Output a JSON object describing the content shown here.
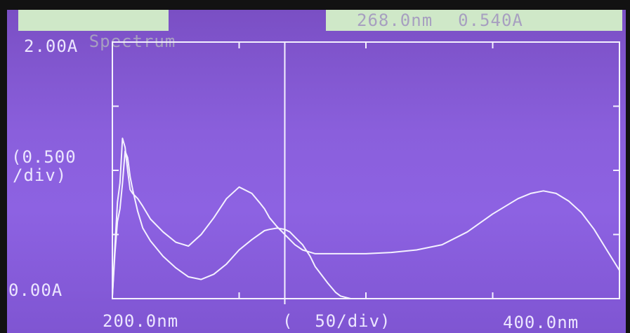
{
  "header": {
    "mode": "Spectrum",
    "cursor_wavelength": "268.0nm",
    "cursor_absorbance": "0.540A"
  },
  "axes": {
    "y_max_label": "2.00A",
    "y_min_label": "0.00A",
    "y_div_line1": "(0.500",
    "y_div_line2": "/div)",
    "x_min_label": "200.0nm",
    "x_div_label": "(  50/div)",
    "x_max_label": "400.0nm"
  },
  "colors": {
    "screen_background": "#8a5fdc",
    "trace": "#f4f1ff",
    "header_box": "#cfe8c8"
  },
  "chart_data": {
    "type": "line",
    "xlim": [
      200,
      400
    ],
    "ylim": [
      0,
      2.0
    ],
    "x_ticks_per_div": 50,
    "y_ticks_per_div": 0.5,
    "cursor_x": 268,
    "series": [
      {
        "x": [
          200,
          201,
          202,
          203,
          204,
          205,
          206,
          207,
          208,
          210,
          212,
          215,
          220,
          225,
          230,
          235,
          240,
          245,
          250,
          255,
          260,
          262,
          265,
          268,
          270,
          272,
          275,
          278,
          280,
          285,
          288,
          290,
          292,
          294,
          296,
          300
        ],
        "y": [
          0.02,
          0.35,
          0.6,
          0.7,
          0.9,
          1.15,
          1.1,
          0.95,
          0.85,
          0.68,
          0.55,
          0.45,
          0.33,
          0.24,
          0.17,
          0.15,
          0.19,
          0.27,
          0.38,
          0.46,
          0.53,
          0.54,
          0.55,
          0.54,
          0.52,
          0.48,
          0.42,
          0.33,
          0.25,
          0.12,
          0.05,
          0.02,
          0.01,
          0.0,
          0.0,
          0.0
        ]
      },
      {
        "x": [
          200,
          201,
          202,
          203,
          204,
          205,
          206,
          207,
          208,
          210,
          212,
          215,
          220,
          225,
          230,
          235,
          240,
          245,
          250,
          255,
          258,
          260,
          262,
          265,
          268,
          270,
          272,
          275,
          280,
          285,
          290,
          300,
          310,
          320,
          330,
          340,
          350,
          360,
          365,
          370,
          375,
          380,
          385,
          390,
          395,
          400
        ],
        "y": [
          0.02,
          0.4,
          0.75,
          0.9,
          1.25,
          1.18,
          1.0,
          0.85,
          0.82,
          0.78,
          0.72,
          0.62,
          0.52,
          0.44,
          0.41,
          0.5,
          0.63,
          0.78,
          0.87,
          0.82,
          0.75,
          0.7,
          0.63,
          0.56,
          0.5,
          0.46,
          0.42,
          0.38,
          0.35,
          0.35,
          0.35,
          0.35,
          0.36,
          0.38,
          0.42,
          0.52,
          0.66,
          0.78,
          0.82,
          0.84,
          0.82,
          0.76,
          0.67,
          0.54,
          0.38,
          0.22
        ]
      }
    ]
  }
}
